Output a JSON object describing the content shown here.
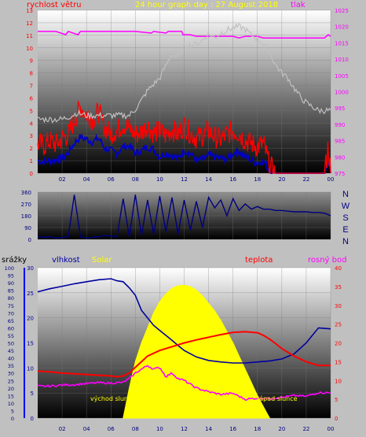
{
  "chart_data": [
    {
      "type": "line",
      "title": "24 hour graph day : 27 August 2018",
      "left_axis_label": "rychlost větru",
      "right_axis_label": "tlak",
      "y_left_ticks": [
        0,
        1,
        2,
        3,
        4,
        5,
        6,
        7,
        8,
        9,
        10,
        11,
        12,
        13
      ],
      "y_left_range": [
        0,
        13
      ],
      "y_right_ticks": [
        975,
        980,
        985,
        990,
        995,
        1000,
        1005,
        1010,
        1015,
        1020,
        1025
      ],
      "y_right_range": [
        975,
        1025
      ],
      "x_ticks": [
        "02",
        "04",
        "06",
        "08",
        "10",
        "12",
        "14",
        "16",
        "18",
        "20",
        "22",
        "00"
      ],
      "x_range_hours": [
        0,
        24
      ],
      "colors": {
        "wind_avg": "#0000c8",
        "wind_gust": "#ff0000",
        "pressure": "#ff00ff",
        "temperature_trace": "#c0c0c0"
      },
      "series": [
        {
          "role": "pressure",
          "axis": "right",
          "x": [
            0,
            1.5,
            2.3,
            2.5,
            3.3,
            3.5,
            4.5,
            8,
            9.3,
            9.5,
            10.5,
            10.7,
            11.8,
            11.9,
            12.5,
            13,
            16,
            16.5,
            17,
            18,
            18.5,
            23.5,
            23.8,
            24
          ],
          "y": [
            1018.5,
            1018.5,
            1017.5,
            1018.5,
            1017.5,
            1018.5,
            1018.5,
            1018.5,
            1018,
            1018.5,
            1018,
            1018.5,
            1018.5,
            1017.5,
            1017.5,
            1017,
            1017,
            1016.5,
            1017,
            1017,
            1016.5,
            1016.5,
            1017.5,
            1017
          ]
        },
        {
          "role": "wind_avg",
          "axis": "left",
          "x": [
            0,
            0.5,
            1,
            1.5,
            2,
            2.5,
            3,
            3.5,
            4,
            4.5,
            5,
            5.5,
            6,
            6.5,
            7,
            7.5,
            8,
            8.5,
            9,
            9.5,
            10,
            10.5,
            11,
            11.5,
            12,
            12.5,
            13,
            13.5,
            14,
            14.5,
            15,
            15.5,
            16,
            16.5,
            17,
            17.5,
            18,
            18.5,
            19,
            19.5,
            20,
            20.5,
            21,
            21.5,
            22,
            22.5,
            23,
            23.5,
            23.8,
            24
          ],
          "y": [
            1,
            0.9,
            1,
            1.1,
            1.2,
            1.6,
            2.4,
            2.9,
            2.7,
            2.5,
            2.8,
            2,
            1.8,
            1.6,
            2.1,
            2.2,
            1.6,
            1.8,
            2.1,
            1.9,
            1.3,
            1.6,
            1.4,
            1.2,
            1.8,
            1.6,
            1,
            1.1,
            1.4,
            1.3,
            1.2,
            1.1,
            1.6,
            1.8,
            1.3,
            1,
            0.8,
            1,
            0.2,
            0,
            0,
            0,
            0,
            0,
            0,
            0,
            0,
            0,
            1,
            0
          ]
        },
        {
          "role": "wind_gust",
          "axis": "left",
          "x": [
            0,
            0.5,
            1,
            1.5,
            2,
            2.5,
            3,
            3.5,
            4,
            4.5,
            5,
            5.5,
            6,
            6.5,
            7,
            7.5,
            8,
            8.5,
            9,
            9.5,
            10,
            10.5,
            11,
            11.5,
            12,
            12.5,
            13,
            13.5,
            14,
            14.5,
            15,
            15.5,
            16,
            16.5,
            17,
            17.5,
            18,
            18.5,
            19,
            19.5,
            20,
            20.5,
            21,
            21.5,
            22,
            22.5,
            23,
            23.5,
            23.8,
            24
          ],
          "y": [
            2.4,
            2.2,
            2.6,
            2.3,
            2.8,
            3.1,
            4.2,
            5.3,
            4.7,
            4.3,
            4.9,
            3.6,
            3.2,
            3.4,
            3.9,
            3.6,
            3.1,
            3.3,
            3.8,
            3.2,
            3.4,
            3,
            3.5,
            3.1,
            3.8,
            3.2,
            2.8,
            3,
            3.4,
            2.9,
            2.7,
            3.1,
            3.4,
            3.2,
            2.6,
            2.4,
            2.1,
            2.4,
            0.6,
            0,
            0,
            0,
            0,
            0,
            0,
            0,
            0,
            0,
            2.2,
            0
          ]
        },
        {
          "role": "temperature_trace",
          "axis": "left",
          "x": [
            0,
            1,
            1.5,
            2,
            2.8,
            3.2,
            4,
            5,
            6,
            6.5,
            7,
            7.5,
            8,
            8.5,
            9,
            9.5,
            10,
            10.5,
            11,
            11.5,
            12,
            12.5,
            13,
            13.5,
            14,
            14.5,
            15,
            15.5,
            16,
            16.5,
            17,
            17.5,
            18,
            18.5,
            19,
            19.5,
            20,
            20.5,
            21,
            21.5,
            22,
            22.5,
            23,
            23.5,
            24
          ],
          "y": [
            4.3,
            4.3,
            4.3,
            4.3,
            4.6,
            4.8,
            4.6,
            4.6,
            4.6,
            4.6,
            4.6,
            4.6,
            5.1,
            5.8,
            6.6,
            7.1,
            7.6,
            8.6,
            9.5,
            9.2,
            10.1,
            10.2,
            10.3,
            10.6,
            11.1,
            10.8,
            11.2,
            11.4,
            11.6,
            11.7,
            11.5,
            11,
            10.7,
            10.3,
            9.6,
            8.6,
            8,
            7.6,
            6.8,
            6.1,
            5.6,
            5.3,
            5,
            5,
            5
          ]
        }
      ]
    },
    {
      "type": "line",
      "right_labels": [
        "N",
        "W",
        "S",
        "E",
        "N"
      ],
      "y_ticks": [
        0,
        90,
        180,
        270,
        360
      ],
      "y_range": [
        0,
        360
      ],
      "x_range_hours": [
        0,
        24
      ],
      "colors": {
        "direction": "#000080"
      },
      "series": [
        {
          "role": "wind_direction",
          "x": [
            0,
            0.5,
            1,
            1.5,
            2,
            2.5,
            3,
            3.5,
            4,
            4.5,
            5,
            5.5,
            6,
            6.5,
            7,
            7.5,
            8,
            8.5,
            9,
            9.5,
            10,
            10.5,
            11,
            11.5,
            12,
            12.5,
            13,
            13.5,
            14,
            14.5,
            15,
            15.5,
            16,
            16.5,
            17,
            17.5,
            18,
            18.5,
            19,
            19.5,
            20,
            20.5,
            21,
            21.5,
            22,
            22.5,
            23,
            23.5,
            24
          ],
          "y": [
            20,
            15,
            20,
            10,
            15,
            20,
            340,
            20,
            10,
            15,
            20,
            30,
            25,
            20,
            310,
            20,
            340,
            30,
            300,
            40,
            330,
            60,
            320,
            40,
            300,
            70,
            290,
            90,
            320,
            240,
            300,
            180,
            310,
            220,
            270,
            230,
            250,
            230,
            230,
            220,
            220,
            215,
            210,
            210,
            210,
            205,
            205,
            200,
            180
          ]
        }
      ]
    },
    {
      "type": "line",
      "labels": {
        "precipitation": "srážky",
        "humidity": "vlhkost",
        "solar": "Solar",
        "temperature": "teplota",
        "dew_point": "rosný bod",
        "sunrise": "východ slunce",
        "sunset": "západ slunce"
      },
      "y_precip_ticks": [
        0,
        5,
        10,
        15,
        20,
        25,
        30,
        35,
        40,
        45,
        50,
        55,
        60,
        65,
        70,
        75,
        80,
        85,
        90,
        95,
        100
      ],
      "y_humidity_ticks": [
        0,
        5,
        10,
        15,
        20,
        25,
        30
      ],
      "y_humidity_range": [
        0,
        30
      ],
      "y_temp_ticks": [
        0,
        5,
        10,
        15,
        20,
        25,
        30,
        35,
        40
      ],
      "y_temp_range": [
        0,
        40
      ],
      "x_ticks": [
        "02",
        "04",
        "06",
        "08",
        "10",
        "12",
        "14",
        "16",
        "18",
        "20",
        "22",
        "00"
      ],
      "x_range_hours": [
        0,
        24
      ],
      "colors": {
        "humidity": "#0000a0",
        "temperature": "#ff0000",
        "dew_point": "#ff00ff",
        "solar": "#ffff00",
        "precipitation": "#0000ff"
      },
      "series": [
        {
          "role": "humidity",
          "axis": "humidity",
          "x": [
            0,
            1,
            2,
            3,
            4,
            5,
            6,
            6.5,
            7,
            7.5,
            8,
            8.5,
            9,
            9.5,
            10,
            10.5,
            11,
            11.5,
            12,
            13,
            14,
            15,
            16,
            17,
            18,
            19,
            20,
            21,
            22,
            22.5,
            23,
            24
          ],
          "y": [
            25.2,
            25.8,
            26.3,
            26.8,
            27.2,
            27.6,
            27.8,
            27.4,
            27.2,
            26,
            24.5,
            21.5,
            20,
            18.5,
            17.5,
            16.5,
            15.5,
            14.5,
            13.5,
            12.2,
            11.5,
            11.2,
            11,
            11,
            11.2,
            11.4,
            11.8,
            12.8,
            15,
            16.5,
            18,
            17.8
          ]
        },
        {
          "role": "temperature",
          "axis": "temp",
          "x": [
            0,
            1,
            2,
            3,
            4,
            5,
            6,
            6.5,
            7,
            7.5,
            8,
            8.5,
            9,
            10,
            11,
            12,
            13,
            14,
            15,
            16,
            17,
            18,
            18.5,
            19,
            19.5,
            20,
            21,
            22,
            23,
            24
          ],
          "y": [
            12.5,
            12.3,
            12,
            11.8,
            11.6,
            11.4,
            11.2,
            11,
            11.2,
            12,
            13.5,
            15,
            16.5,
            18,
            19,
            20,
            20.8,
            21.5,
            22.2,
            22.8,
            23,
            22.7,
            22,
            21,
            19.8,
            18.5,
            16.5,
            15,
            14,
            14
          ]
        },
        {
          "role": "dew_point",
          "axis": "temp",
          "x": [
            0,
            1,
            2,
            3,
            4,
            5,
            6,
            7,
            7.5,
            8,
            8.5,
            9,
            9.5,
            10,
            10.5,
            11,
            11.5,
            12,
            12.5,
            13,
            14,
            15,
            16,
            17,
            18,
            19,
            20,
            21,
            22,
            23,
            24
          ],
          "y": [
            8.5,
            8.5,
            8.8,
            8.9,
            9.2,
            9.4,
            9.3,
            9.5,
            10.5,
            12,
            13,
            14,
            13,
            13.5,
            11,
            12,
            10.5,
            10,
            9,
            8,
            7,
            6.3,
            6.6,
            5,
            5.3,
            5.2,
            5.5,
            6,
            5.8,
            6.8,
            6.7
          ]
        },
        {
          "role": "solar",
          "axis": "solar",
          "x": [
            7,
            7.5,
            8,
            8.5,
            9,
            9.5,
            10,
            10.5,
            11,
            11.5,
            12,
            12.5,
            13,
            13.5,
            14,
            14.5,
            15,
            15.5,
            16,
            16.5,
            17,
            17.5,
            18,
            18.5,
            19
          ],
          "y": [
            0,
            8,
            15,
            20,
            24,
            28,
            31,
            33,
            34.5,
            35.2,
            35.3,
            35,
            34,
            32.5,
            30.5,
            28.5,
            26,
            23,
            20,
            16.5,
            13,
            9.5,
            6,
            3,
            0
          ]
        }
      ]
    }
  ]
}
